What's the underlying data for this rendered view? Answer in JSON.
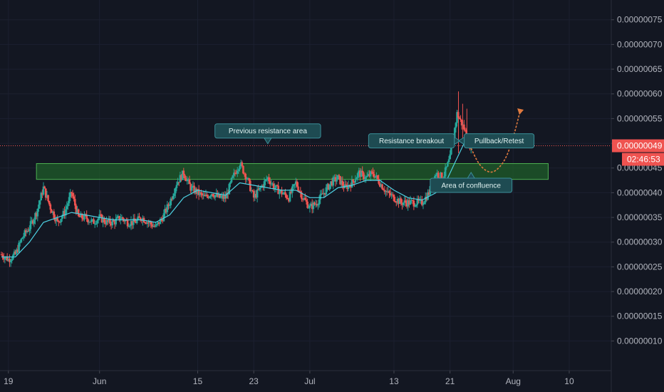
{
  "chart_data": {
    "type": "candlestick",
    "y_ticks": [
      "0.00000075",
      "0.00000070",
      "0.00000065",
      "0.00000060",
      "0.00000055",
      "0.00000050",
      "0.00000045",
      "0.00000040",
      "0.00000035",
      "0.00000030",
      "0.00000025",
      "0.00000020",
      "0.00000015",
      "0.00000010"
    ],
    "y_tick_values": [
      75,
      70,
      65,
      60,
      55,
      50,
      45,
      40,
      35,
      30,
      25,
      20,
      15,
      10
    ],
    "ylim": [
      4,
      79
    ],
    "x_ticks": [
      "19",
      "Jun",
      "15",
      "23",
      "Jul",
      "13",
      "21",
      "Aug",
      "10"
    ],
    "x_tick_days": [
      0,
      13,
      27,
      35,
      43,
      55,
      63,
      72,
      80
    ],
    "xlim": [
      -1.2,
      86
    ],
    "price_series": [
      [
        -1,
        27.5
      ],
      [
        0,
        26.5
      ],
      [
        1,
        27.5
      ],
      [
        2,
        31
      ],
      [
        3,
        33
      ],
      [
        4,
        36
      ],
      [
        5,
        41
      ],
      [
        6,
        37
      ],
      [
        7,
        34
      ],
      [
        8,
        36
      ],
      [
        9,
        40
      ],
      [
        10,
        35
      ],
      [
        11,
        35
      ],
      [
        12,
        34
      ],
      [
        13,
        35
      ],
      [
        14,
        34
      ],
      [
        15,
        34
      ],
      [
        16,
        35
      ],
      [
        17,
        34
      ],
      [
        18,
        34
      ],
      [
        19,
        35
      ],
      [
        20,
        34
      ],
      [
        21,
        33
      ],
      [
        22,
        35
      ],
      [
        23,
        38
      ],
      [
        24,
        42
      ],
      [
        25,
        44
      ],
      [
        26,
        41
      ],
      [
        27,
        40
      ],
      [
        28,
        39
      ],
      [
        29,
        40
      ],
      [
        30,
        39
      ],
      [
        31,
        39
      ],
      [
        32,
        43
      ],
      [
        33,
        46
      ],
      [
        34,
        43
      ],
      [
        35,
        39
      ],
      [
        36,
        41
      ],
      [
        37,
        43
      ],
      [
        38,
        41
      ],
      [
        39,
        40
      ],
      [
        40,
        39
      ],
      [
        41,
        42
      ],
      [
        42,
        39
      ],
      [
        43,
        37
      ],
      [
        44,
        38
      ],
      [
        45,
        40
      ],
      [
        46,
        42
      ],
      [
        47,
        43
      ],
      [
        48,
        41
      ],
      [
        49,
        42
      ],
      [
        50,
        44
      ],
      [
        51,
        43
      ],
      [
        52,
        44
      ],
      [
        53,
        42
      ],
      [
        54,
        40
      ],
      [
        55,
        39
      ],
      [
        56,
        38
      ],
      [
        57,
        38
      ],
      [
        58,
        38
      ],
      [
        59,
        38
      ],
      [
        60,
        40
      ],
      [
        61,
        44
      ],
      [
        62,
        43
      ],
      [
        63,
        47
      ],
      [
        64,
        56
      ],
      [
        65,
        53
      ],
      [
        66,
        49
      ]
    ],
    "ma_series": [
      [
        -1,
        27
      ],
      [
        1,
        27
      ],
      [
        3,
        30
      ],
      [
        5,
        34
      ],
      [
        7,
        35
      ],
      [
        9,
        36
      ],
      [
        11,
        35.5
      ],
      [
        13,
        35
      ],
      [
        15,
        34.5
      ],
      [
        17,
        34.5
      ],
      [
        19,
        34.5
      ],
      [
        21,
        34
      ],
      [
        23,
        35.5
      ],
      [
        25,
        39
      ],
      [
        27,
        40.5
      ],
      [
        29,
        40
      ],
      [
        31,
        39.5
      ],
      [
        33,
        42
      ],
      [
        35,
        41.5
      ],
      [
        37,
        41
      ],
      [
        39,
        40.5
      ],
      [
        41,
        40.5
      ],
      [
        43,
        39
      ],
      [
        45,
        39
      ],
      [
        47,
        41
      ],
      [
        49,
        41.5
      ],
      [
        51,
        42.5
      ],
      [
        53,
        42.5
      ],
      [
        55,
        40.5
      ],
      [
        57,
        39
      ],
      [
        59,
        38.5
      ],
      [
        61,
        40
      ],
      [
        62,
        41
      ],
      [
        63,
        44
      ],
      [
        64,
        47
      ],
      [
        65,
        50
      ]
    ],
    "resistance_zone": [
      42.7,
      45.9
    ],
    "resistance_zone_days": [
      4,
      77
    ],
    "current_price_label": "0.00000049",
    "current_price_value": 49.5,
    "countdown": "02:46:53",
    "projection_path": [
      [
        66,
        49
      ],
      [
        67,
        46
      ],
      [
        68,
        44.5
      ],
      [
        69,
        44
      ],
      [
        70,
        45
      ],
      [
        71,
        47
      ],
      [
        72,
        51
      ],
      [
        73,
        56.5
      ]
    ],
    "annotations": [
      {
        "text": "Previous resistance area",
        "day": 37,
        "value": 52.5,
        "pointer": "down"
      },
      {
        "text": "Resistance breakout",
        "day": 57.5,
        "value": 50.5,
        "pointer": "right"
      },
      {
        "text": "Pullback/Retest",
        "day": 70,
        "value": 50.5,
        "pointer": "left"
      },
      {
        "text": "Area of confluence",
        "day": 66,
        "value": 41.5,
        "pointer": "up"
      }
    ],
    "colors": {
      "background": "#131722",
      "up": "#26a69a",
      "down": "#ef5350",
      "ma": "#4dd0e1",
      "zone_fill": "#1f5e2a",
      "zone_stroke": "#4caf50",
      "price_line": "#ef5350",
      "annotation_bg": "#1e4b52",
      "annotation_border": "#3a8e98",
      "projection": "#e07a3f",
      "axis_text": "#b2b5be"
    }
  }
}
